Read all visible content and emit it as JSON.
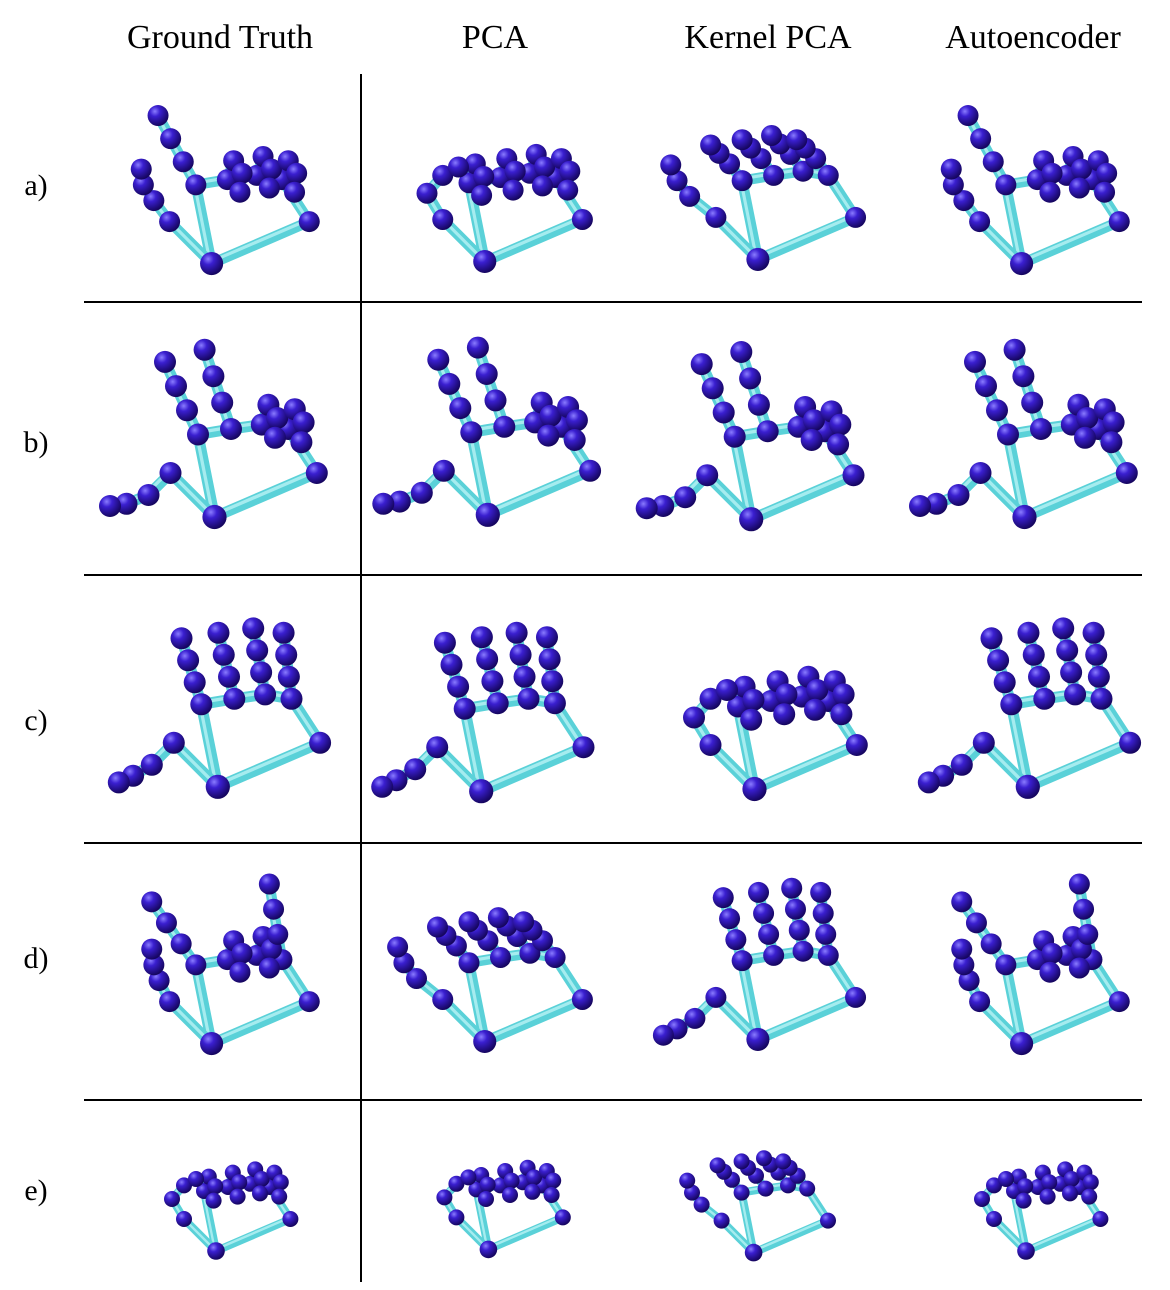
{
  "figure": {
    "columns": [
      {
        "key": "gt",
        "label": "Ground Truth"
      },
      {
        "key": "pca",
        "label": "PCA"
      },
      {
        "key": "kpca",
        "label": "Kernel PCA"
      },
      {
        "key": "ae",
        "label": "Autoencoder"
      }
    ],
    "rows": [
      {
        "label": "a)"
      },
      {
        "label": "b)"
      },
      {
        "label": "c)"
      },
      {
        "label": "d)"
      },
      {
        "label": "e)"
      }
    ]
  },
  "colors": {
    "bone": "#5ad1d8",
    "joint": "#2a0fa3",
    "joint_highlight": "#6f5cf0",
    "rule": "#000000"
  }
}
